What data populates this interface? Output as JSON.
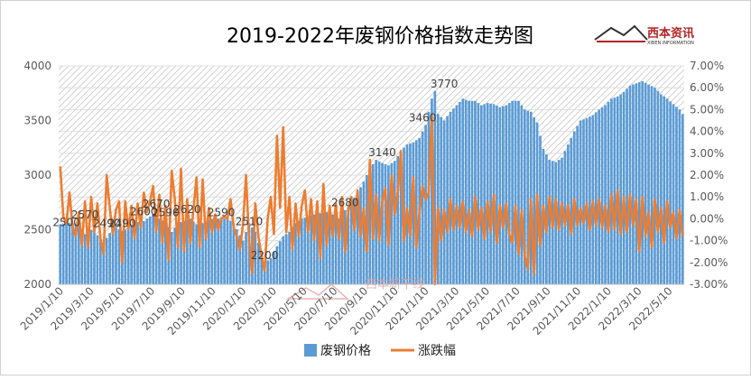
{
  "chart_data": {
    "type": "bar+line",
    "title": "2019-2022年废钢价格指数走势图",
    "brand": {
      "name": "西本资讯",
      "sub": "XIBEN INFORMATION",
      "watermark": "西本新干线"
    },
    "x_ticks": [
      "2019/1/10",
      "2019/3/10",
      "2019/5/10",
      "2019/7/10",
      "2019/9/10",
      "2019/11/10",
      "2020/1/10",
      "2020/3/10",
      "2020/5/10",
      "2020/7/10",
      "2020/9/10",
      "2020/11/10",
      "2021/1/10",
      "2021/3/10",
      "2021/5/10",
      "2021/7/10",
      "2021/9/10",
      "2021/11/10",
      "2022/1/10",
      "2022/3/10",
      "2022/5/10"
    ],
    "y_left": {
      "min": 2000,
      "max": 4000,
      "step": 500,
      "ticks": [
        "2000",
        "2500",
        "3000",
        "3500",
        "4000"
      ]
    },
    "y_right": {
      "min": -3,
      "max": 7,
      "step": 1,
      "ticks": [
        "-3.00%",
        "-2.00%",
        "-1.00%",
        "0.00%",
        "1.00%",
        "2.00%",
        "3.00%",
        "4.00%",
        "5.00%",
        "6.00%",
        "7.00%"
      ]
    },
    "series": [
      {
        "name": "废钢价格",
        "type": "bar",
        "color": "#5b9bd5"
      },
      {
        "name": "涨跌幅",
        "type": "line",
        "color": "#ed7d31"
      }
    ],
    "price_keypoints": [
      [
        0,
        2550
      ],
      [
        3,
        2560
      ],
      [
        6,
        2550
      ],
      [
        8,
        2460
      ],
      [
        10,
        2500
      ],
      [
        12,
        2450
      ],
      [
        14,
        2380
      ],
      [
        16,
        2470
      ],
      [
        18,
        2520
      ],
      [
        20,
        2490
      ],
      [
        22,
        2510
      ],
      [
        24,
        2580
      ],
      [
        26,
        2560
      ],
      [
        28,
        2600
      ],
      [
        30,
        2640
      ],
      [
        32,
        2600
      ],
      [
        34,
        2570
      ],
      [
        36,
        2480
      ],
      [
        38,
        2560
      ],
      [
        40,
        2580
      ],
      [
        42,
        2600
      ],
      [
        44,
        2550
      ],
      [
        46,
        2560
      ],
      [
        48,
        2590
      ],
      [
        50,
        2600
      ],
      [
        52,
        2600
      ],
      [
        54,
        2600
      ],
      [
        56,
        2560
      ],
      [
        58,
        2450
      ],
      [
        59,
        2400
      ],
      [
        61,
        2560
      ],
      [
        63,
        2480
      ],
      [
        64,
        2380
      ],
      [
        66,
        2200
      ],
      [
        68,
        2240
      ],
      [
        70,
        2350
      ],
      [
        72,
        2440
      ],
      [
        74,
        2480
      ],
      [
        76,
        2560
      ],
      [
        78,
        2600
      ],
      [
        80,
        2620
      ],
      [
        82,
        2640
      ],
      [
        84,
        2650
      ],
      [
        86,
        2660
      ],
      [
        88,
        2640
      ],
      [
        90,
        2600
      ],
      [
        92,
        2680
      ],
      [
        94,
        2740
      ],
      [
        96,
        2840
      ],
      [
        98,
        2940
      ],
      [
        100,
        3060
      ],
      [
        102,
        3140
      ],
      [
        104,
        3110
      ],
      [
        106,
        3090
      ],
      [
        108,
        3130
      ],
      [
        110,
        3220
      ],
      [
        112,
        3280
      ],
      [
        114,
        3300
      ],
      [
        116,
        3340
      ],
      [
        118,
        3460
      ],
      [
        120,
        3700
      ],
      [
        121,
        3770
      ],
      [
        122,
        3560
      ],
      [
        124,
        3500
      ],
      [
        126,
        3580
      ],
      [
        128,
        3640
      ],
      [
        130,
        3700
      ],
      [
        132,
        3680
      ],
      [
        134,
        3680
      ],
      [
        136,
        3640
      ],
      [
        138,
        3660
      ],
      [
        140,
        3650
      ],
      [
        142,
        3620
      ],
      [
        144,
        3640
      ],
      [
        146,
        3680
      ],
      [
        148,
        3680
      ],
      [
        150,
        3600
      ],
      [
        152,
        3580
      ],
      [
        154,
        3480
      ],
      [
        156,
        3240
      ],
      [
        158,
        3140
      ],
      [
        160,
        3120
      ],
      [
        162,
        3160
      ],
      [
        164,
        3280
      ],
      [
        166,
        3400
      ],
      [
        168,
        3500
      ],
      [
        170,
        3520
      ],
      [
        172,
        3550
      ],
      [
        174,
        3600
      ],
      [
        176,
        3640
      ],
      [
        178,
        3700
      ],
      [
        180,
        3720
      ],
      [
        182,
        3760
      ],
      [
        184,
        3820
      ],
      [
        186,
        3840
      ],
      [
        188,
        3860
      ],
      [
        190,
        3830
      ],
      [
        192,
        3800
      ],
      [
        194,
        3740
      ],
      [
        196,
        3700
      ],
      [
        198,
        3650
      ],
      [
        200,
        3600
      ],
      [
        201,
        3560
      ]
    ],
    "change_keypoints": [
      [
        0,
        2.4
      ],
      [
        1,
        0.1
      ],
      [
        2,
        -0.2
      ],
      [
        3,
        1.2
      ],
      [
        4,
        -0.4
      ],
      [
        5,
        -0.8
      ],
      [
        6,
        0.3
      ],
      [
        7,
        -1.2
      ],
      [
        8,
        0.8
      ],
      [
        9,
        -1.3
      ],
      [
        10,
        1.0
      ],
      [
        11,
        -0.6
      ],
      [
        12,
        0.7
      ],
      [
        13,
        -0.9
      ],
      [
        14,
        -1.6
      ],
      [
        15,
        2.0
      ],
      [
        16,
        0.5
      ],
      [
        17,
        -0.7
      ],
      [
        18,
        0.4
      ],
      [
        19,
        0.8
      ],
      [
        20,
        -2.0
      ],
      [
        21,
        0.8
      ],
      [
        22,
        -0.5
      ],
      [
        23,
        0.6
      ],
      [
        24,
        -0.9
      ],
      [
        25,
        0.7
      ],
      [
        26,
        -0.4
      ],
      [
        27,
        1.2
      ],
      [
        28,
        0.3
      ],
      [
        29,
        0.8
      ],
      [
        30,
        1.5
      ],
      [
        31,
        -0.6
      ],
      [
        32,
        1.1
      ],
      [
        33,
        -1.1
      ],
      [
        34,
        0.6
      ],
      [
        35,
        -1.9
      ],
      [
        36,
        2.2
      ],
      [
        37,
        0.9
      ],
      [
        38,
        -1.3
      ],
      [
        39,
        2.3
      ],
      [
        40,
        -1.5
      ],
      [
        41,
        0.9
      ],
      [
        42,
        -1.1
      ],
      [
        43,
        0.4
      ],
      [
        44,
        1.9
      ],
      [
        45,
        -1.3
      ],
      [
        46,
        1.8
      ],
      [
        47,
        -0.9
      ],
      [
        48,
        0.5
      ],
      [
        49,
        -0.6
      ],
      [
        50,
        0.2
      ],
      [
        51,
        -0.5
      ],
      [
        52,
        0.0
      ],
      [
        53,
        0.1
      ],
      [
        54,
        0.0
      ],
      [
        55,
        0.9
      ],
      [
        56,
        -0.4
      ],
      [
        57,
        -0.8
      ],
      [
        58,
        -1.4
      ],
      [
        59,
        -0.3
      ],
      [
        60,
        2.0
      ],
      [
        61,
        -1.0
      ],
      [
        62,
        -2.5
      ],
      [
        63,
        0.7
      ],
      [
        64,
        -0.8
      ],
      [
        65,
        -1.7
      ],
      [
        66,
        -2.4
      ],
      [
        67,
        0.0
      ],
      [
        68,
        1.0
      ],
      [
        69,
        -0.7
      ],
      [
        70,
        3.8
      ],
      [
        71,
        0.5
      ],
      [
        72,
        4.2
      ],
      [
        73,
        -0.6
      ],
      [
        74,
        1.0
      ],
      [
        75,
        -1.4
      ],
      [
        76,
        0.7
      ],
      [
        77,
        -0.8
      ],
      [
        78,
        0.6
      ],
      [
        79,
        1.3
      ],
      [
        80,
        -0.6
      ],
      [
        81,
        0.9
      ],
      [
        82,
        -1.0
      ],
      [
        83,
        0.8
      ],
      [
        84,
        -1.8
      ],
      [
        85,
        1.6
      ],
      [
        86,
        -1.2
      ],
      [
        87,
        0.6
      ],
      [
        88,
        -0.8
      ],
      [
        89,
        0.7
      ],
      [
        90,
        -0.9
      ],
      [
        91,
        1.0
      ],
      [
        92,
        -1.5
      ],
      [
        93,
        0.3
      ],
      [
        94,
        1.0
      ],
      [
        95,
        -0.5
      ],
      [
        96,
        1.3
      ],
      [
        97,
        -0.8
      ],
      [
        98,
        0.5
      ],
      [
        99,
        -1.5
      ],
      [
        100,
        2.7
      ],
      [
        101,
        -0.9
      ],
      [
        102,
        1.1
      ],
      [
        103,
        -1.0
      ],
      [
        104,
        0.8
      ],
      [
        105,
        1.4
      ],
      [
        106,
        -1.2
      ],
      [
        107,
        2.0
      ],
      [
        108,
        0.2
      ],
      [
        109,
        1.2
      ],
      [
        110,
        3.1
      ],
      [
        111,
        -1.0
      ],
      [
        112,
        0.5
      ],
      [
        113,
        -0.8
      ],
      [
        114,
        1.9
      ],
      [
        115,
        -1.3
      ],
      [
        116,
        0.3
      ],
      [
        117,
        1.5
      ],
      [
        118,
        0.9
      ],
      [
        119,
        1.2
      ],
      [
        120,
        4.7
      ],
      [
        121,
        -3.0
      ],
      [
        122,
        0.5
      ],
      [
        123,
        -1.0
      ],
      [
        124,
        0.4
      ],
      [
        125,
        -0.6
      ],
      [
        126,
        0.9
      ],
      [
        127,
        -0.5
      ],
      [
        128,
        0.6
      ],
      [
        129,
        -0.4
      ],
      [
        130,
        0.8
      ],
      [
        131,
        -0.6
      ],
      [
        132,
        0.4
      ],
      [
        133,
        -0.8
      ],
      [
        134,
        1.0
      ],
      [
        135,
        -0.5
      ],
      [
        136,
        0.5
      ],
      [
        137,
        -0.9
      ],
      [
        138,
        0.8
      ],
      [
        139,
        -0.6
      ],
      [
        140,
        1.1
      ],
      [
        141,
        -1.1
      ],
      [
        142,
        0.6
      ],
      [
        143,
        -0.4
      ],
      [
        144,
        0.7
      ],
      [
        145,
        -0.7
      ],
      [
        146,
        -1.1
      ],
      [
        147,
        0.6
      ],
      [
        148,
        -1.6
      ],
      [
        149,
        0.4
      ],
      [
        150,
        -1.7
      ],
      [
        151,
        -2.3
      ],
      [
        152,
        0.9
      ],
      [
        153,
        -2.5
      ],
      [
        154,
        1.1
      ],
      [
        155,
        -1.2
      ],
      [
        156,
        0.6
      ],
      [
        157,
        -0.6
      ],
      [
        158,
        1.0
      ],
      [
        159,
        -0.4
      ],
      [
        160,
        0.9
      ],
      [
        161,
        -0.5
      ],
      [
        162,
        0.7
      ],
      [
        163,
        -0.3
      ],
      [
        164,
        0.6
      ],
      [
        165,
        -0.7
      ],
      [
        166,
        0.9
      ],
      [
        167,
        -0.3
      ],
      [
        168,
        0.5
      ],
      [
        169,
        -0.2
      ],
      [
        170,
        0.7
      ],
      [
        171,
        -0.5
      ],
      [
        172,
        0.8
      ],
      [
        173,
        -0.3
      ],
      [
        174,
        0.9
      ],
      [
        175,
        -0.4
      ],
      [
        176,
        0.6
      ],
      [
        177,
        -0.6
      ],
      [
        178,
        1.1
      ],
      [
        179,
        -0.5
      ],
      [
        180,
        1.3
      ],
      [
        181,
        -0.7
      ],
      [
        182,
        1.0
      ],
      [
        183,
        -0.6
      ],
      [
        184,
        1.1
      ],
      [
        185,
        -0.3
      ],
      [
        186,
        0.9
      ],
      [
        187,
        -1.5
      ],
      [
        188,
        1.0
      ],
      [
        189,
        -0.8
      ],
      [
        190,
        0.3
      ],
      [
        191,
        -1.3
      ],
      [
        192,
        0.9
      ],
      [
        193,
        -0.6
      ],
      [
        194,
        0.5
      ],
      [
        195,
        -1.1
      ],
      [
        196,
        0.8
      ],
      [
        197,
        -0.4
      ],
      [
        198,
        0.3
      ],
      [
        199,
        -0.9
      ],
      [
        200,
        0.4
      ],
      [
        201,
        -0.8
      ]
    ],
    "total_points": 202,
    "annotations": [
      {
        "text": "2500",
        "x": 2,
        "y": 2500
      },
      {
        "text": "2570",
        "x": 8,
        "y": 2570
      },
      {
        "text": "2490",
        "x": 15,
        "y": 2490
      },
      {
        "text": "2490",
        "x": 20,
        "y": 2490
      },
      {
        "text": "2600",
        "x": 27,
        "y": 2600
      },
      {
        "text": "2670",
        "x": 31,
        "y": 2670
      },
      {
        "text": "2590",
        "x": 34,
        "y": 2590
      },
      {
        "text": "2620",
        "x": 41,
        "y": 2620
      },
      {
        "text": "2590",
        "x": 52,
        "y": 2590
      },
      {
        "text": "2510",
        "x": 61,
        "y": 2510
      },
      {
        "text": "2200",
        "x": 66,
        "y": 2200
      },
      {
        "text": "2680",
        "x": 92,
        "y": 2680
      },
      {
        "text": "3140",
        "x": 104,
        "y": 3140
      },
      {
        "text": "3460",
        "x": 117,
        "y": 3460
      },
      {
        "text": "3770",
        "x": 124,
        "y": 3770
      }
    ]
  }
}
